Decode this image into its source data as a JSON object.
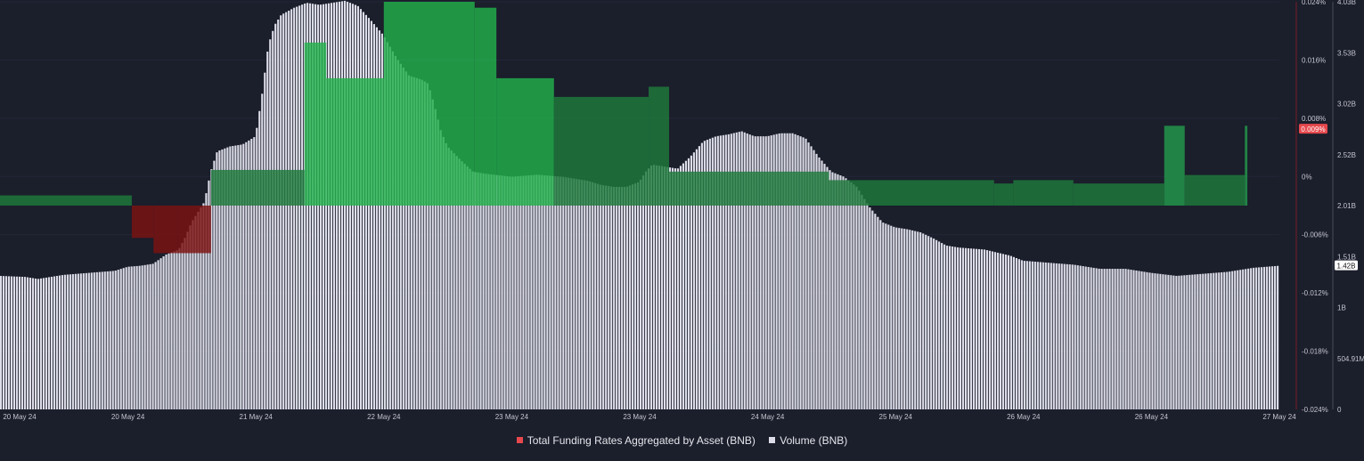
{
  "chart_data": {
    "type": "bar",
    "x_tick_labels": [
      "20 May 24",
      "20 May 24",
      "21 May 24",
      "22 May 24",
      "23 May 24",
      "23 May 24",
      "24 May 24",
      "25 May 24",
      "26 May 24",
      "26 May 24",
      "27 May 24"
    ],
    "funding_axis": {
      "tick_labels": [
        "0.024%",
        "0.016%",
        "0.008%",
        "0%",
        "-0.006%",
        "-0.012%",
        "-0.018%",
        "-0.024%"
      ],
      "ylim": [
        -0.024,
        0.024
      ],
      "current_value_label": "0.009%"
    },
    "volume_axis": {
      "tick_labels": [
        "4.03B",
        "3.53B",
        "3.02B",
        "2.52B",
        "2.01B",
        "1.51B",
        "1B",
        "504.91M",
        "0"
      ],
      "ylim": [
        0,
        4.03
      ],
      "current_value_label": "1.42B"
    },
    "series": [
      {
        "name": "Total Funding Rates Aggregated by Asset (BNB)",
        "color": "#e5484d",
        "x_range": [
          0,
          100
        ],
        "segments": [
          {
            "x0": 0.0,
            "x1": 10.3,
            "value": 0.0012
          },
          {
            "x0": 10.3,
            "x1": 12.0,
            "value": -0.0038
          },
          {
            "x0": 12.0,
            "x1": 13.9,
            "value": -0.0056
          },
          {
            "x0": 13.9,
            "x1": 16.5,
            "value": -0.0056
          },
          {
            "x0": 16.5,
            "x1": 23.8,
            "value": 0.0042
          },
          {
            "x0": 23.8,
            "x1": 25.5,
            "value": 0.0192
          },
          {
            "x0": 25.5,
            "x1": 30.0,
            "value": 0.015
          },
          {
            "x0": 30.0,
            "x1": 37.1,
            "value": 0.024
          },
          {
            "x0": 37.1,
            "x1": 38.8,
            "value": 0.0233
          },
          {
            "x0": 38.8,
            "x1": 43.3,
            "value": 0.015
          },
          {
            "x0": 43.3,
            "x1": 50.7,
            "value": 0.0128
          },
          {
            "x0": 50.7,
            "x1": 52.3,
            "value": 0.014
          },
          {
            "x0": 52.3,
            "x1": 64.8,
            "value": 0.004
          },
          {
            "x0": 64.8,
            "x1": 66.0,
            "value": 0.003
          },
          {
            "x0": 66.0,
            "x1": 77.7,
            "value": 0.003
          },
          {
            "x0": 77.7,
            "x1": 79.2,
            "value": 0.0026
          },
          {
            "x0": 79.2,
            "x1": 83.9,
            "value": 0.003
          },
          {
            "x0": 83.9,
            "x1": 91.0,
            "value": 0.0026
          },
          {
            "x0": 91.0,
            "x1": 92.6,
            "value": 0.0094
          },
          {
            "x0": 92.6,
            "x1": 97.3,
            "value": 0.0036
          },
          {
            "x0": 97.3,
            "x1": 97.5,
            "value": 0.0094
          }
        ]
      },
      {
        "name": "Volume (BNB)",
        "color": "#dcdde8",
        "x_range": [
          0,
          100
        ],
        "points": [
          [
            0,
            1.32
          ],
          [
            2,
            1.31
          ],
          [
            3,
            1.29
          ],
          [
            5,
            1.33
          ],
          [
            7,
            1.35
          ],
          [
            9,
            1.37
          ],
          [
            10,
            1.41
          ],
          [
            11,
            1.42
          ],
          [
            12,
            1.44
          ],
          [
            13,
            1.53
          ],
          [
            14,
            1.58
          ],
          [
            14.5,
            1.7
          ],
          [
            15,
            1.85
          ],
          [
            16,
            2.05
          ],
          [
            16.5,
            2.35
          ],
          [
            17,
            2.55
          ],
          [
            18,
            2.6
          ],
          [
            19,
            2.62
          ],
          [
            20,
            2.7
          ],
          [
            20.5,
            3.1
          ],
          [
            21,
            3.6
          ],
          [
            21.5,
            3.8
          ],
          [
            22,
            3.9
          ],
          [
            23,
            3.97
          ],
          [
            24,
            4.02
          ],
          [
            25,
            4.0
          ],
          [
            26,
            4.02
          ],
          [
            27,
            4.04
          ],
          [
            28,
            3.99
          ],
          [
            29,
            3.85
          ],
          [
            30,
            3.7
          ],
          [
            31,
            3.48
          ],
          [
            32,
            3.3
          ],
          [
            33,
            3.26
          ],
          [
            33.5,
            3.22
          ],
          [
            34,
            3.0
          ],
          [
            34.5,
            2.75
          ],
          [
            35,
            2.6
          ],
          [
            36,
            2.47
          ],
          [
            37,
            2.35
          ],
          [
            38,
            2.33
          ],
          [
            40,
            2.3
          ],
          [
            42,
            2.32
          ],
          [
            44,
            2.3
          ],
          [
            46,
            2.26
          ],
          [
            47,
            2.22
          ],
          [
            48,
            2.2
          ],
          [
            49,
            2.2
          ],
          [
            50,
            2.25
          ],
          [
            50.5,
            2.35
          ],
          [
            51,
            2.42
          ],
          [
            52,
            2.4
          ],
          [
            53,
            2.38
          ],
          [
            54,
            2.5
          ],
          [
            55,
            2.65
          ],
          [
            56,
            2.7
          ],
          [
            57,
            2.72
          ],
          [
            58,
            2.75
          ],
          [
            59,
            2.7
          ],
          [
            60,
            2.7
          ],
          [
            61,
            2.73
          ],
          [
            62,
            2.73
          ],
          [
            63,
            2.68
          ],
          [
            64,
            2.5
          ],
          [
            65,
            2.35
          ],
          [
            66,
            2.3
          ],
          [
            67,
            2.2
          ],
          [
            68,
            2.0
          ],
          [
            69,
            1.85
          ],
          [
            70,
            1.8
          ],
          [
            71,
            1.78
          ],
          [
            72,
            1.75
          ],
          [
            73,
            1.69
          ],
          [
            74,
            1.62
          ],
          [
            75,
            1.6
          ],
          [
            77,
            1.58
          ],
          [
            79,
            1.52
          ],
          [
            80,
            1.47
          ],
          [
            82,
            1.45
          ],
          [
            84,
            1.43
          ],
          [
            86,
            1.39
          ],
          [
            88,
            1.39
          ],
          [
            90,
            1.35
          ],
          [
            92,
            1.32
          ],
          [
            94,
            1.34
          ],
          [
            96,
            1.36
          ],
          [
            98,
            1.4
          ],
          [
            100,
            1.42
          ]
        ]
      }
    ],
    "legend": {
      "position": "bottom-center",
      "items": [
        {
          "label": "Total Funding Rates Aggregated by Asset (BNB)",
          "color": "#e5484d"
        },
        {
          "label": "Volume (BNB)",
          "color": "#dcdde8"
        }
      ]
    },
    "grid": true,
    "colors": {
      "background": "#1b1e2b",
      "positive_funding": "#1e7a3c",
      "positive_funding_bright": "#22b14c",
      "negative_funding": "#7d1212",
      "volume": "#dcdde8"
    }
  }
}
